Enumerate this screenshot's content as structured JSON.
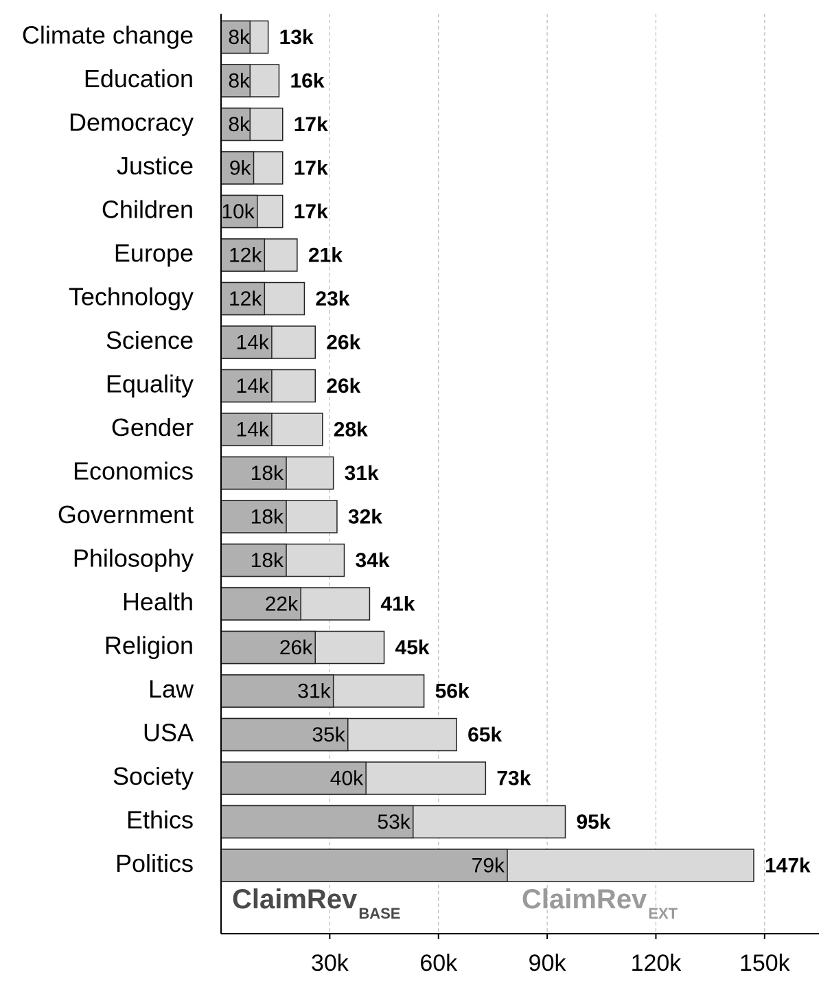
{
  "chart_data": {
    "type": "bar",
    "layout": "horizontal-overlap",
    "categories": [
      "Climate change",
      "Education",
      "Democracy",
      "Justice",
      "Children",
      "Europe",
      "Technology",
      "Science",
      "Equality",
      "Gender",
      "Economics",
      "Government",
      "Philosophy",
      "Health",
      "Religion",
      "Law",
      "USA",
      "Society",
      "Ethics",
      "Politics"
    ],
    "series": [
      {
        "name": "ClaimRev",
        "subscript": "BASE",
        "color": "#b0b0b0",
        "legend_color": "#4a4a4a",
        "values": [
          8000,
          8000,
          8000,
          9000,
          10000,
          12000,
          12000,
          14000,
          14000,
          14000,
          18000,
          18000,
          18000,
          22000,
          26000,
          31000,
          35000,
          40000,
          53000,
          79000
        ],
        "value_labels": [
          "8k",
          "8k",
          "8k",
          "9k",
          "10k",
          "12k",
          "12k",
          "14k",
          "14k",
          "14k",
          "18k",
          "18k",
          "18k",
          "22k",
          "26k",
          "31k",
          "35k",
          "40k",
          "53k",
          "79k"
        ]
      },
      {
        "name": "ClaimRev",
        "subscript": "EXT",
        "color": "#d9d9d9",
        "legend_color": "#9a9a9a",
        "values": [
          13000,
          16000,
          17000,
          17000,
          17000,
          21000,
          23000,
          26000,
          26000,
          28000,
          31000,
          32000,
          34000,
          41000,
          45000,
          56000,
          65000,
          73000,
          95000,
          147000
        ],
        "value_labels": [
          "13k",
          "16k",
          "17k",
          "17k",
          "17k",
          "21k",
          "23k",
          "26k",
          "26k",
          "28k",
          "31k",
          "32k",
          "34k",
          "41k",
          "45k",
          "56k",
          "65k",
          "73k",
          "95k",
          "147k"
        ]
      }
    ],
    "xlim": [
      0,
      165000
    ],
    "xticks": [
      {
        "value": 30000,
        "label": "30k"
      },
      {
        "value": 60000,
        "label": "60k"
      },
      {
        "value": 90000,
        "label": "90k"
      },
      {
        "value": 120000,
        "label": "120k"
      },
      {
        "value": 150000,
        "label": "150k"
      }
    ],
    "grid": true
  }
}
